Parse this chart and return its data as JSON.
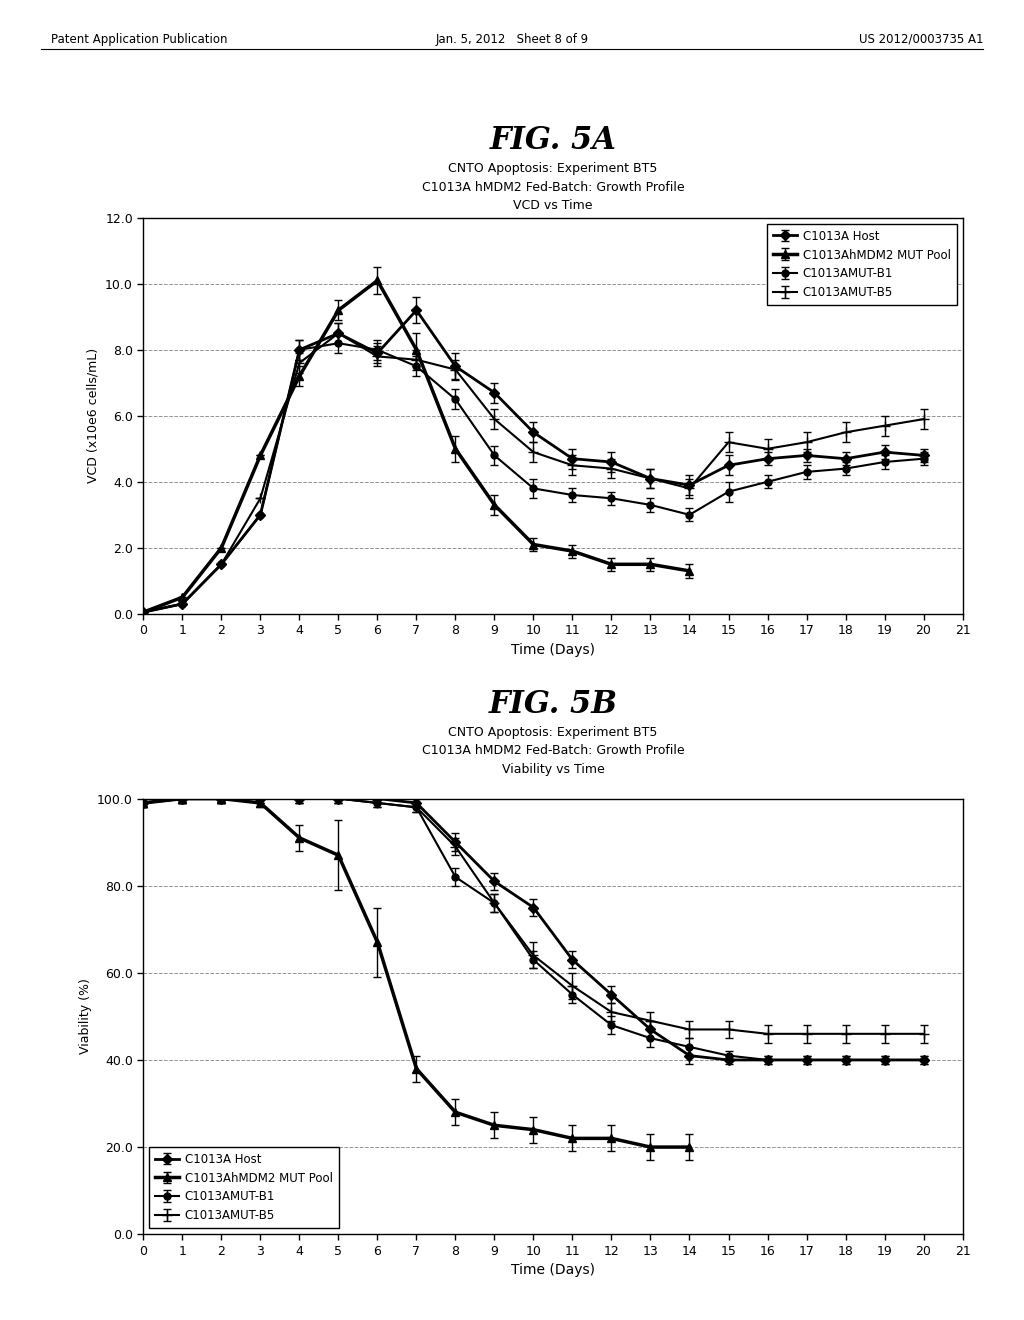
{
  "fig5a": {
    "title_fig": "FIG. 5A",
    "subtitle1": "CNTO Apoptosis: Experiment BT5",
    "subtitle2": "C1013A hMDM2 Fed-Batch: Growth Profile",
    "subtitle3": "VCD vs Time",
    "ylabel": "VCD (x10e6 cells/mL)",
    "xlabel": "Time (Days)",
    "ylim": [
      0,
      12.0
    ],
    "yticks": [
      0.0,
      2.0,
      4.0,
      6.0,
      8.0,
      10.0,
      12.0
    ],
    "ytick_labels": [
      "0.0",
      "2.0",
      "4.0",
      "6.0",
      "8.0",
      "10.0",
      "12.0"
    ],
    "xlim": [
      0,
      21
    ],
    "xticks": [
      0,
      1,
      2,
      3,
      4,
      5,
      6,
      7,
      8,
      9,
      10,
      11,
      12,
      13,
      14,
      15,
      16,
      17,
      18,
      19,
      20,
      21
    ],
    "legend_loc": "upper right",
    "series": [
      {
        "label": "C1013A Host",
        "x": [
          0,
          1,
          2,
          3,
          4,
          5,
          6,
          7,
          8,
          9,
          10,
          11,
          12,
          13,
          14,
          15,
          16,
          17,
          18,
          19,
          20
        ],
        "y": [
          0.05,
          0.3,
          1.5,
          3.0,
          8.0,
          8.5,
          7.9,
          9.2,
          7.5,
          6.7,
          5.5,
          4.7,
          4.6,
          4.1,
          3.9,
          4.5,
          4.7,
          4.8,
          4.7,
          4.9,
          4.8
        ],
        "yerr": [
          0.0,
          0.0,
          0.0,
          0.0,
          0.3,
          0.3,
          0.3,
          0.4,
          0.4,
          0.3,
          0.3,
          0.3,
          0.3,
          0.3,
          0.3,
          0.3,
          0.2,
          0.2,
          0.2,
          0.2,
          0.2
        ],
        "marker": "D",
        "markersize": 5,
        "linewidth": 2.0,
        "mfc": "black"
      },
      {
        "label": "C1013AhMDM2 MUT Pool",
        "x": [
          0,
          1,
          2,
          3,
          4,
          5,
          6,
          7,
          8,
          9,
          10,
          11,
          12,
          13,
          14
        ],
        "y": [
          0.05,
          0.5,
          2.0,
          4.8,
          7.2,
          9.2,
          10.1,
          8.0,
          5.0,
          3.3,
          2.1,
          1.9,
          1.5,
          1.5,
          1.3
        ],
        "yerr": [
          0.0,
          0.0,
          0.0,
          0.0,
          0.3,
          0.3,
          0.4,
          0.5,
          0.4,
          0.3,
          0.2,
          0.2,
          0.2,
          0.2,
          0.2
        ],
        "marker": "^",
        "markersize": 6,
        "linewidth": 2.5,
        "mfc": "black"
      },
      {
        "label": "C1013AMUT-B1",
        "x": [
          0,
          1,
          2,
          3,
          4,
          5,
          6,
          7,
          8,
          9,
          10,
          11,
          12,
          13,
          14,
          15,
          16,
          17,
          18,
          19,
          20
        ],
        "y": [
          0.05,
          0.3,
          1.5,
          3.0,
          8.0,
          8.2,
          8.0,
          7.5,
          6.5,
          4.8,
          3.8,
          3.6,
          3.5,
          3.3,
          3.0,
          3.7,
          4.0,
          4.3,
          4.4,
          4.6,
          4.7
        ],
        "yerr": [
          0.0,
          0.0,
          0.0,
          0.0,
          0.3,
          0.3,
          0.3,
          0.3,
          0.3,
          0.3,
          0.3,
          0.2,
          0.2,
          0.2,
          0.2,
          0.3,
          0.2,
          0.2,
          0.2,
          0.2,
          0.2
        ],
        "marker": "o",
        "markersize": 5,
        "linewidth": 1.5,
        "mfc": "black"
      },
      {
        "label": "C1013AMUT-B5",
        "x": [
          0,
          1,
          2,
          3,
          4,
          5,
          6,
          7,
          8,
          9,
          10,
          11,
          12,
          13,
          14,
          15,
          16,
          17,
          18,
          19,
          20
        ],
        "y": [
          0.05,
          0.3,
          1.5,
          3.5,
          7.6,
          8.5,
          7.8,
          7.7,
          7.4,
          5.9,
          4.9,
          4.5,
          4.4,
          4.1,
          3.8,
          5.2,
          5.0,
          5.2,
          5.5,
          5.7,
          5.9
        ],
        "yerr": [
          0.0,
          0.0,
          0.0,
          0.0,
          0.3,
          0.3,
          0.3,
          0.3,
          0.3,
          0.3,
          0.3,
          0.3,
          0.3,
          0.3,
          0.3,
          0.3,
          0.3,
          0.3,
          0.3,
          0.3,
          0.3
        ],
        "marker": "+",
        "markersize": 7,
        "linewidth": 1.5,
        "mfc": "black"
      }
    ]
  },
  "fig5b": {
    "title_fig": "FIG. 5B",
    "subtitle1": "CNTO Apoptosis: Experiment BT5",
    "subtitle2": "C1013A hMDM2 Fed-Batch: Growth Profile",
    "subtitle3": "Viability vs Time",
    "ylabel": "Viability (%)",
    "xlabel": "Time (Days)",
    "ylim": [
      0,
      100.0
    ],
    "yticks": [
      0.0,
      20.0,
      40.0,
      60.0,
      80.0,
      100.0
    ],
    "ytick_labels": [
      "0.0",
      "20.0",
      "40.0",
      "60.0",
      "80.0",
      "100.0"
    ],
    "xlim": [
      0,
      21
    ],
    "xticks": [
      0,
      1,
      2,
      3,
      4,
      5,
      6,
      7,
      8,
      9,
      10,
      11,
      12,
      13,
      14,
      15,
      16,
      17,
      18,
      19,
      20,
      21
    ],
    "legend_loc": "lower left",
    "series": [
      {
        "label": "C1013A Host",
        "x": [
          0,
          1,
          2,
          3,
          4,
          5,
          6,
          7,
          8,
          9,
          10,
          11,
          12,
          13,
          14,
          15,
          16,
          17,
          18,
          19,
          20
        ],
        "y": [
          99,
          100,
          100,
          100,
          100,
          100,
          100,
          99,
          90,
          81,
          75,
          63,
          55,
          47,
          41,
          40,
          40,
          40,
          40,
          40,
          40
        ],
        "yerr": [
          1,
          1,
          1,
          1,
          1,
          1,
          1,
          1,
          2,
          2,
          2,
          2,
          2,
          2,
          2,
          1,
          1,
          1,
          1,
          1,
          1
        ],
        "marker": "D",
        "markersize": 5,
        "linewidth": 2.0,
        "mfc": "black"
      },
      {
        "label": "C1013AhMDM2 MUT Pool",
        "x": [
          0,
          1,
          2,
          3,
          4,
          5,
          6,
          7,
          8,
          9,
          10,
          11,
          12,
          13,
          14
        ],
        "y": [
          99,
          100,
          100,
          99,
          91,
          87,
          67,
          38,
          28,
          25,
          24,
          22,
          22,
          20,
          20
        ],
        "yerr": [
          1,
          1,
          1,
          1,
          3,
          8,
          8,
          3,
          3,
          3,
          3,
          3,
          3,
          3,
          3
        ],
        "marker": "^",
        "markersize": 6,
        "linewidth": 2.5,
        "mfc": "black"
      },
      {
        "label": "C1013AMUT-B1",
        "x": [
          0,
          1,
          2,
          3,
          4,
          5,
          6,
          7,
          8,
          9,
          10,
          11,
          12,
          13,
          14,
          15,
          16,
          17,
          18,
          19,
          20
        ],
        "y": [
          99,
          100,
          100,
          100,
          100,
          100,
          99,
          98,
          82,
          76,
          63,
          55,
          48,
          45,
          43,
          41,
          40,
          40,
          40,
          40,
          40
        ],
        "yerr": [
          1,
          1,
          1,
          1,
          1,
          1,
          1,
          1,
          2,
          2,
          2,
          2,
          2,
          2,
          2,
          1,
          1,
          1,
          1,
          1,
          1
        ],
        "marker": "o",
        "markersize": 5,
        "linewidth": 1.5,
        "mfc": "black"
      },
      {
        "label": "C1013AMUT-B5",
        "x": [
          0,
          1,
          2,
          3,
          4,
          5,
          6,
          7,
          8,
          9,
          10,
          11,
          12,
          13,
          14,
          15,
          16,
          17,
          18,
          19,
          20
        ],
        "y": [
          99,
          100,
          100,
          100,
          100,
          100,
          99,
          98,
          89,
          76,
          64,
          57,
          51,
          49,
          47,
          47,
          46,
          46,
          46,
          46,
          46
        ],
        "yerr": [
          1,
          1,
          1,
          1,
          1,
          1,
          1,
          1,
          2,
          2,
          3,
          3,
          2,
          2,
          2,
          2,
          2,
          2,
          2,
          2,
          2
        ],
        "marker": "+",
        "markersize": 7,
        "linewidth": 1.5,
        "mfc": "black"
      }
    ]
  },
  "header_left": "Patent Application Publication",
  "header_date": "Jan. 5, 2012   Sheet 8 of 9",
  "header_right": "US 2012/0003735 A1",
  "background_color": "#ffffff",
  "text_color": "#000000"
}
